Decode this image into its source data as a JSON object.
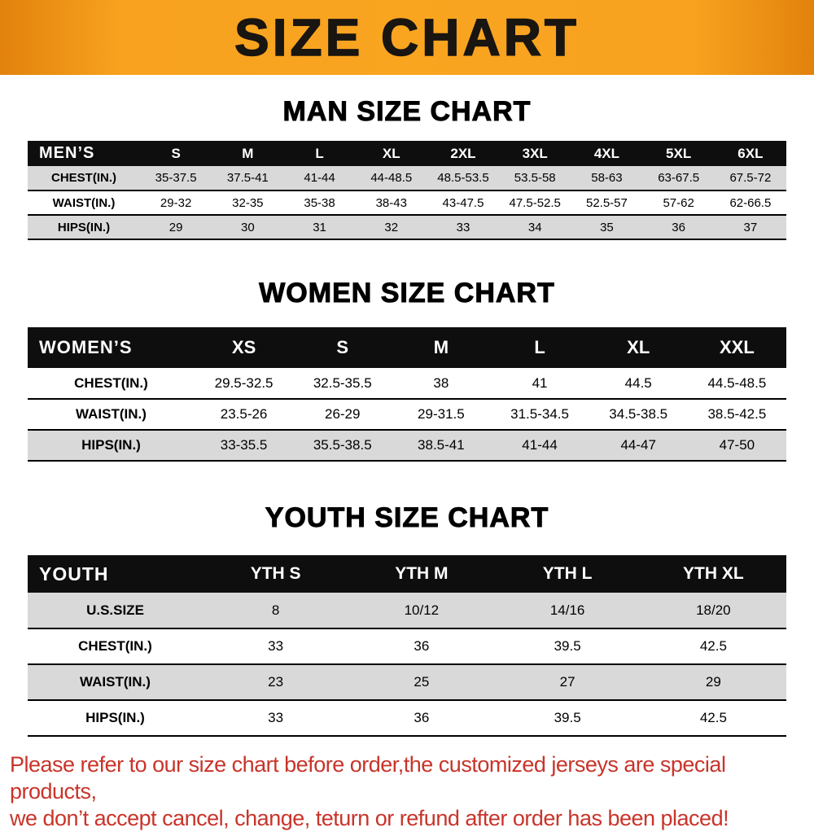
{
  "banner": {
    "title": "SIZE CHART"
  },
  "colors": {
    "banner_orange": "#f8a21f",
    "table_header_black": "#0e0e0e",
    "stripe_gray": "#d9d9d9",
    "footer_red": "#c9342a"
  },
  "sections": [
    {
      "title": "MAN SIZE CHART",
      "table": {
        "header": [
          "MEN’S",
          "S",
          "M",
          "L",
          "XL",
          "2XL",
          "3XL",
          "4XL",
          "5XL",
          "6XL"
        ],
        "rows": [
          [
            "CHEST(IN.)",
            "35-37.5",
            "37.5-41",
            "41-44",
            "44-48.5",
            "48.5-53.5",
            "53.5-58",
            "58-63",
            "63-67.5",
            "67.5-72"
          ],
          [
            "WAIST(IN.)",
            "29-32",
            "32-35",
            "35-38",
            "38-43",
            "43-47.5",
            "47.5-52.5",
            "52.5-57",
            "57-62",
            "62-66.5"
          ],
          [
            "HIPS(IN.)",
            "29",
            "30",
            "31",
            "32",
            "33",
            "34",
            "35",
            "36",
            "37"
          ]
        ]
      }
    },
    {
      "title": "WOMEN SIZE CHART",
      "table": {
        "header": [
          "WOMEN’S",
          "XS",
          "S",
          "M",
          "L",
          "XL",
          "XXL"
        ],
        "rows": [
          [
            "CHEST(IN.)",
            "29.5-32.5",
            "32.5-35.5",
            "38",
            "41",
            "44.5",
            "44.5-48.5"
          ],
          [
            "WAIST(IN.)",
            "23.5-26",
            "26-29",
            "29-31.5",
            "31.5-34.5",
            "34.5-38.5",
            "38.5-42.5"
          ],
          [
            "HIPS(IN.)",
            "33-35.5",
            "35.5-38.5",
            "38.5-41",
            "41-44",
            "44-47",
            "47-50"
          ]
        ]
      }
    },
    {
      "title": "YOUTH SIZE CHART",
      "table": {
        "header": [
          "YOUTH",
          "YTH S",
          "YTH M",
          "YTH L",
          "YTH XL"
        ],
        "rows": [
          [
            "U.S.SIZE",
            "8",
            "10/12",
            "14/16",
            "18/20"
          ],
          [
            "CHEST(IN.)",
            "33",
            "36",
            "39.5",
            "42.5"
          ],
          [
            "WAIST(IN.)",
            "23",
            "25",
            "27",
            "29"
          ],
          [
            "HIPS(IN.)",
            "33",
            "36",
            "39.5",
            "42.5"
          ]
        ]
      }
    }
  ],
  "footer": {
    "lines": [
      "Please refer to our size chart before order,the customized jerseys are special products,",
      "we don’t accept cancel, change, teturn or refund after order has been placed!"
    ]
  }
}
